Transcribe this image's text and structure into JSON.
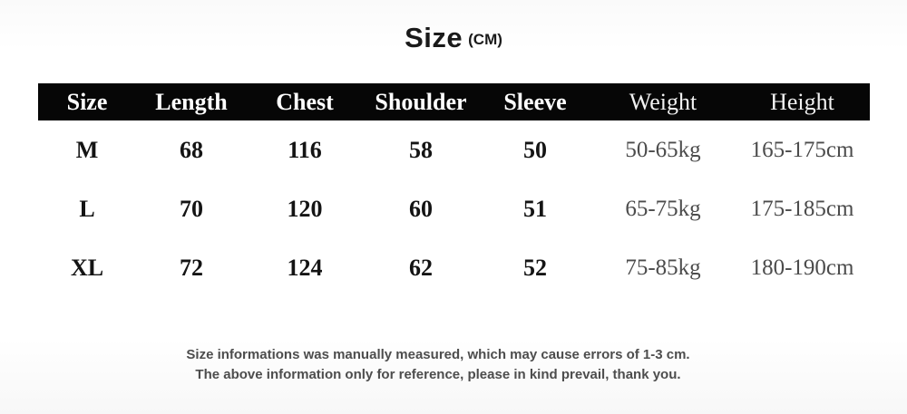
{
  "title": {
    "main": "Size",
    "unit": "(CM)"
  },
  "table": {
    "headers": [
      "Size",
      "Length",
      "Chest",
      "Shoulder",
      "Sleeve",
      "Weight",
      "Height"
    ],
    "rows": [
      {
        "cells": [
          "M",
          "68",
          "116",
          "58",
          "50",
          "50-65kg",
          "165-175cm"
        ]
      },
      {
        "cells": [
          "L",
          "70",
          "120",
          "60",
          "51",
          "65-75kg",
          "175-185cm"
        ]
      },
      {
        "cells": [
          "XL",
          "72",
          "124",
          "62",
          "52",
          "75-85kg",
          "180-190cm"
        ]
      }
    ]
  },
  "footer": {
    "line1": "Size informations was manually measured, which may cause errors of 1-3 cm.",
    "line2": "The above information only for reference, please in kind prevail, thank you."
  },
  "colors": {
    "header_bg": "#060606",
    "header_text": "#ffffff",
    "data_text": "#141414",
    "muted_text": "#4c4c4c",
    "footer_text": "#4d4d4d",
    "background": "#ffffff"
  },
  "chart_data": {
    "type": "table",
    "title": "Size (CM)",
    "columns": [
      "Size",
      "Length",
      "Chest",
      "Shoulder",
      "Sleeve",
      "Weight",
      "Height"
    ],
    "rows": [
      [
        "M",
        68,
        116,
        58,
        50,
        "50-65kg",
        "165-175cm"
      ],
      [
        "L",
        70,
        120,
        60,
        51,
        "65-75kg",
        "175-185cm"
      ],
      [
        "XL",
        72,
        124,
        62,
        52,
        "75-85kg",
        "180-190cm"
      ]
    ],
    "notes": [
      "Size informations was manually measured, which may cause errors of 1-3 cm.",
      "The above information only for reference, please in kind prevail, thank you."
    ]
  }
}
